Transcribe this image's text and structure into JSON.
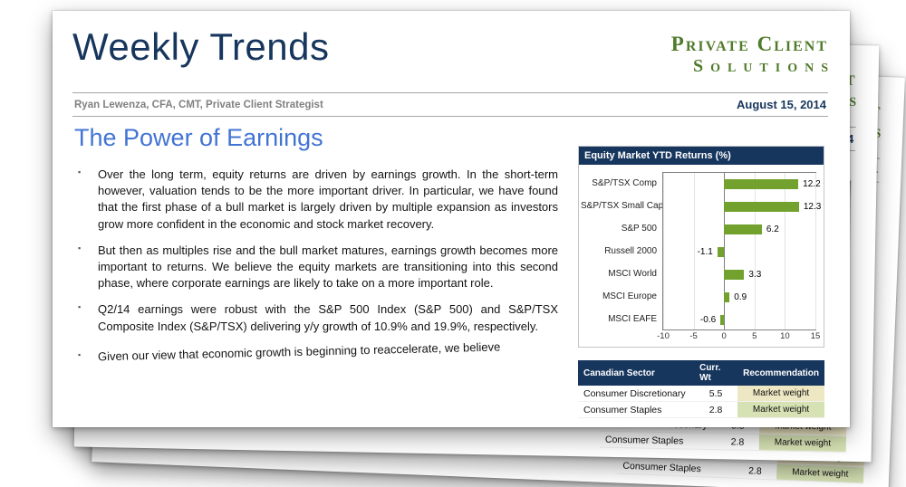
{
  "page": {
    "header": {
      "title": "Weekly Trends",
      "brand_line1": "Private Client",
      "brand_line2": "Solutions",
      "byline": "Ryan Lewenza, CFA, CMT, Private Client Strategist",
      "date": "August 15, 2014"
    },
    "article": {
      "title": "The Power of Earnings",
      "bullets": [
        "Over the long term, equity returns are driven by earnings growth. In the short-term however, valuation tends to be the more important driver. In particular, we have found that the first phase of a bull market is largely driven by multiple expansion as investors grow more confident in the economic and stock market recovery.",
        "But then as multiples rise and the bull market matures, earnings growth becomes more important to returns. We believe the equity markets are transitioning into this second phase, where corporate earnings are likely to take on a more important role.",
        "Q2/14 earnings were robust with the S&P 500 Index (S&P 500) and S&P/TSX Composite Index (S&P/TSX) delivering y/y growth of 10.9% and 19.9%, respectively.",
        "Given our view that economic growth is beginning to reaccelerate, we believe"
      ]
    }
  },
  "chart_data": {
    "type": "bar",
    "orientation": "horizontal",
    "title": "Equity Market YTD Returns (%)",
    "categories": [
      "S&P/TSX Comp",
      "S&P/TSX Small Cap",
      "S&P 500",
      "Russell 2000",
      "MSCI World",
      "MSCI Europe",
      "MSCI EAFE"
    ],
    "values": [
      12.2,
      12.3,
      6.2,
      -1.1,
      3.3,
      0.9,
      -0.6
    ],
    "xlim": [
      -10,
      15
    ],
    "xticks": [
      -10,
      -5,
      0,
      5,
      10,
      15
    ],
    "grid": true,
    "legend": "none"
  },
  "sector_table": {
    "headers": [
      "Canadian Sector",
      "Curr. Wt",
      "Recommendation"
    ],
    "rows": [
      {
        "sector": "Consumer Discretionary",
        "weight": "5.5",
        "recommendation": "Market weight",
        "highlight": "tan"
      },
      {
        "sector": "Consumer Staples",
        "weight": "2.8",
        "recommendation": "Market weight",
        "highlight": "green"
      }
    ]
  },
  "colors": {
    "navy": "#17365D",
    "brand_green": "#4F7B2A",
    "title_blue": "#4274D4",
    "bar_green": "#73A12D",
    "rec_tan": "#EDE7C3",
    "rec_green_bg": "#D6E2B4",
    "rec_green_border": "#76933C",
    "rule_gray": "#A6A6A6"
  }
}
